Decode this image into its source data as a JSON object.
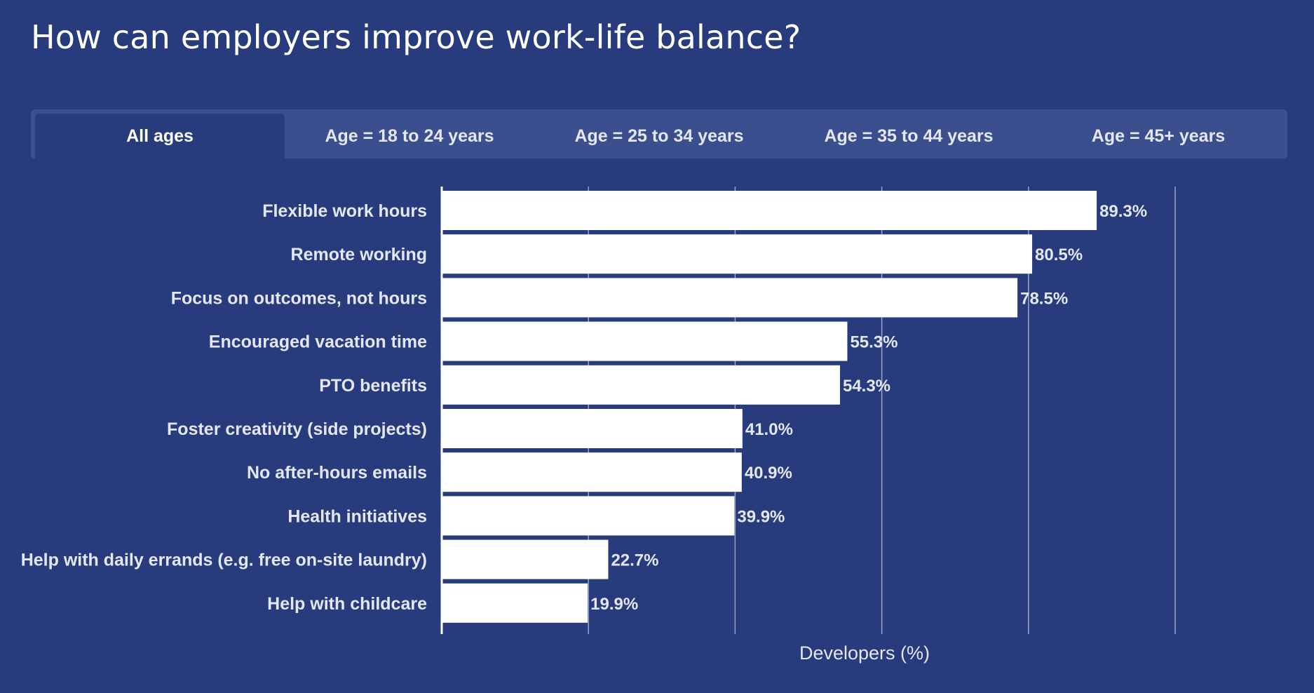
{
  "page": {
    "title": "How can employers improve work-life balance?"
  },
  "tabs": [
    {
      "label": "All ages",
      "active": true
    },
    {
      "label": "Age = 18 to 24 years",
      "active": false
    },
    {
      "label": "Age = 25 to 34 years",
      "active": false
    },
    {
      "label": "Age = 35 to 44 years",
      "active": false
    },
    {
      "label": "Age = 45+ years",
      "active": false
    }
  ],
  "colors": {
    "background": "#283b7c",
    "bar": "#ffffff",
    "gridline": "#9aa4c8",
    "text": "#e4e7f1",
    "tab_bar": "#3b4f8e"
  },
  "chart_data": {
    "type": "bar",
    "orientation": "horizontal",
    "categories": [
      "Flexible work hours",
      "Remote working",
      "Focus on outcomes, not hours",
      "Encouraged vacation time",
      "PTO benefits",
      "Foster creativity (side projects)",
      "No after-hours emails",
      "Health initiatives",
      "Help with daily errands (e.g. free on-site laundry)",
      "Help with childcare"
    ],
    "values": [
      89.3,
      80.5,
      78.5,
      55.3,
      54.3,
      41.0,
      40.9,
      39.9,
      22.7,
      19.9
    ],
    "value_labels": [
      "89.3%",
      "80.5%",
      "78.5%",
      "55.3%",
      "54.3%",
      "41.0%",
      "40.9%",
      "39.9%",
      "22.7%",
      "19.9%"
    ],
    "xlabel": "Developers (%)",
    "ylabel": "",
    "xlim": [
      0,
      100
    ],
    "gridlines": [
      20,
      40,
      60,
      80,
      100
    ],
    "grid": true,
    "legend": "none"
  }
}
